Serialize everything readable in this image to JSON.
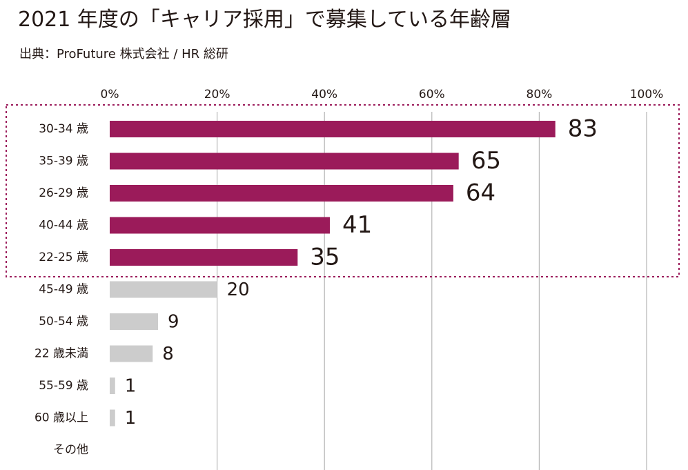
{
  "title": "2021 年度の「キャリア採用」で募集している年齢層",
  "subtitle": "出典：ProFuture 株式会社 / HR 総研",
  "colors": {
    "highlight": "#9b1b5a",
    "normal": "#cccccc",
    "grid": "#b5b5b5",
    "text": "#231815"
  },
  "chart_data": {
    "type": "bar",
    "orientation": "horizontal",
    "title": "2021 年度の「キャリア採用」で募集している年齢層",
    "subtitle": "出典：ProFuture 株式会社 / HR 総研",
    "xlim": [
      0,
      100
    ],
    "xticks": [
      "0%",
      "20%",
      "40%",
      "60%",
      "80%",
      "100%"
    ],
    "xtick_values": [
      0,
      20,
      40,
      60,
      80,
      100
    ],
    "grid": true,
    "categories": [
      "30-34 歳",
      "35-39 歳",
      "26-29 歳",
      "40-44 歳",
      "22-25 歳",
      "45-49 歳",
      "50-54 歳",
      "22 歳未満",
      "55-59 歳",
      "60 歳以上",
      "その他"
    ],
    "values": [
      83,
      65,
      64,
      41,
      35,
      20,
      9,
      8,
      1,
      1,
      null
    ],
    "labels": [
      "83",
      "65",
      "64",
      "41",
      "35",
      "20",
      "9",
      "8",
      "1",
      "1",
      ""
    ],
    "highlighted": [
      true,
      true,
      true,
      true,
      true,
      false,
      false,
      false,
      false,
      false,
      false
    ],
    "highlight_box": "dotted outline around top five categories"
  }
}
